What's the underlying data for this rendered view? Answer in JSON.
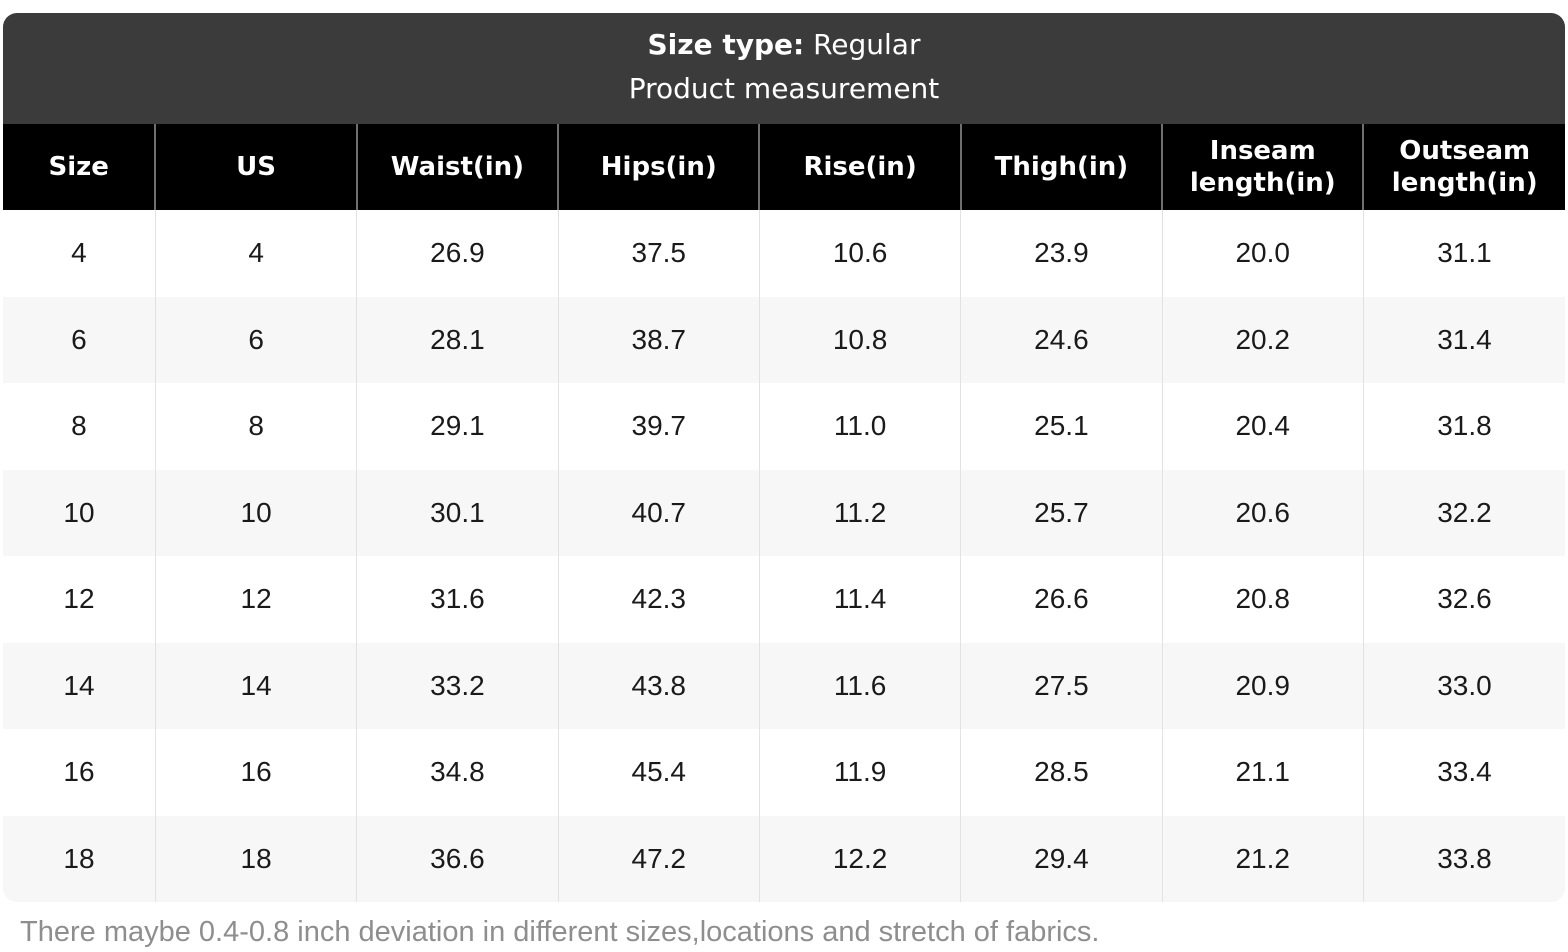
{
  "caption": {
    "size_type_label": "Size type:",
    "size_type_value": " Regular",
    "table_title": "Product measurement"
  },
  "columns": [
    "Size",
    "US",
    "Waist(in)",
    "Hips(in)",
    "Rise(in)",
    "Thigh(in)",
    "Inseam length(in)",
    "Outseam length(in)"
  ],
  "rows": [
    [
      "4",
      "4",
      "26.9",
      "37.5",
      "10.6",
      "23.9",
      "20.0",
      "31.1"
    ],
    [
      "6",
      "6",
      "28.1",
      "38.7",
      "10.8",
      "24.6",
      "20.2",
      "31.4"
    ],
    [
      "8",
      "8",
      "29.1",
      "39.7",
      "11.0",
      "25.1",
      "20.4",
      "31.8"
    ],
    [
      "10",
      "10",
      "30.1",
      "40.7",
      "11.2",
      "25.7",
      "20.6",
      "32.2"
    ],
    [
      "12",
      "12",
      "31.6",
      "42.3",
      "11.4",
      "26.6",
      "20.8",
      "32.6"
    ],
    [
      "14",
      "14",
      "33.2",
      "43.8",
      "11.6",
      "27.5",
      "20.9",
      "33.0"
    ],
    [
      "16",
      "16",
      "34.8",
      "45.4",
      "11.9",
      "28.5",
      "21.1",
      "33.4"
    ],
    [
      "18",
      "18",
      "36.6",
      "47.2",
      "12.2",
      "29.4",
      "21.2",
      "33.8"
    ]
  ],
  "footnote": "There maybe 0.4-0.8 inch deviation in different sizes,locations and stretch of fabrics.",
  "column_widths_percent": [
    9.76,
    12.89,
    12.89,
    12.89,
    12.89,
    12.89,
    12.89,
    12.9
  ],
  "colors": {
    "caption_background": "#3b3b3b",
    "header_background": "#000000",
    "alt_row_background": "#f7f7f7",
    "header_separator": "#6f6f6f",
    "cell_separator": "#e2e2e2",
    "footnote_text": "#8e8e8e"
  }
}
